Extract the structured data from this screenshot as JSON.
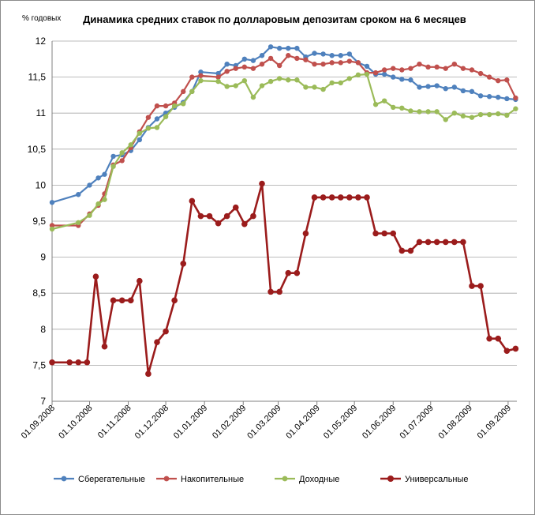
{
  "chart_data": {
    "type": "line",
    "title": "Динамика средних ставок по долларовым депозитам сроком на 6 месяцев",
    "ylabel": "% годовых",
    "xlabel": "",
    "ylim": [
      7,
      12
    ],
    "yticks": [
      "7",
      "7,5",
      "8",
      "8,5",
      "9",
      "9,5",
      "10",
      "10,5",
      "11",
      "11,5",
      "12"
    ],
    "xticks": [
      "01.09.2008",
      "01.10.2008",
      "01.11.2008",
      "01.12.2008",
      "01.01.2009",
      "01.02.2009",
      "01.03.2009",
      "01.04.2009",
      "01.05.2009",
      "01.06.2009",
      "01.07.2009",
      "01.08.2009",
      "01.09.2009"
    ],
    "grid": "horizontal",
    "legend_position": "bottom",
    "colors": {
      "Сберегательные": "#4f81bd",
      "Накопительные": "#c0504d",
      "Доходные": "#9bbb59",
      "Универсальные": "#9b1c1c"
    },
    "series": [
      {
        "name": "Сберегательные",
        "x": [
          "2008-09-01",
          "2008-09-22",
          "2008-10-01",
          "2008-10-08",
          "2008-10-13",
          "2008-10-20",
          "2008-10-27",
          "2008-11-03",
          "2008-11-10",
          "2008-11-17",
          "2008-11-24",
          "2008-12-01",
          "2008-12-08",
          "2008-12-15",
          "2008-12-22",
          "2008-12-29",
          "2009-01-12",
          "2009-01-19",
          "2009-01-26",
          "2009-02-02",
          "2009-02-09",
          "2009-02-16",
          "2009-02-23",
          "2009-03-02",
          "2009-03-09",
          "2009-03-16",
          "2009-03-23",
          "2009-03-30",
          "2009-04-06",
          "2009-04-13",
          "2009-04-20",
          "2009-04-27",
          "2009-05-04",
          "2009-05-11",
          "2009-05-18",
          "2009-05-25",
          "2009-06-01",
          "2009-06-08",
          "2009-06-15",
          "2009-06-22",
          "2009-06-29",
          "2009-07-06",
          "2009-07-13",
          "2009-07-20",
          "2009-07-27",
          "2009-08-03",
          "2009-08-10",
          "2009-08-17",
          "2009-08-24",
          "2009-08-31",
          "2009-09-07"
        ],
        "values": [
          9.76,
          9.87,
          10.0,
          10.1,
          10.15,
          10.4,
          10.42,
          10.48,
          10.63,
          10.8,
          10.92,
          11.0,
          11.08,
          11.15,
          11.3,
          11.57,
          11.55,
          11.68,
          11.66,
          11.75,
          11.73,
          11.8,
          11.92,
          11.9,
          11.9,
          11.9,
          11.78,
          11.83,
          11.82,
          11.8,
          11.8,
          11.82,
          11.7,
          11.65,
          11.54,
          11.54,
          11.5,
          11.47,
          11.46,
          11.36,
          11.37,
          11.38,
          11.34,
          11.36,
          11.31,
          11.3,
          11.24,
          11.23,
          11.22,
          11.2,
          11.19
        ]
      },
      {
        "name": "Накопительные",
        "x": [
          "2008-09-01",
          "2008-09-22",
          "2008-10-01",
          "2008-10-08",
          "2008-10-13",
          "2008-10-20",
          "2008-10-27",
          "2008-11-03",
          "2008-11-10",
          "2008-11-17",
          "2008-11-24",
          "2008-12-01",
          "2008-12-08",
          "2008-12-15",
          "2008-12-22",
          "2008-12-29",
          "2009-01-12",
          "2009-01-19",
          "2009-01-26",
          "2009-02-02",
          "2009-02-09",
          "2009-02-16",
          "2009-02-23",
          "2009-03-02",
          "2009-03-09",
          "2009-03-16",
          "2009-03-23",
          "2009-03-30",
          "2009-04-06",
          "2009-04-13",
          "2009-04-20",
          "2009-04-27",
          "2009-05-04",
          "2009-05-11",
          "2009-05-18",
          "2009-05-25",
          "2009-06-01",
          "2009-06-08",
          "2009-06-15",
          "2009-06-22",
          "2009-06-29",
          "2009-07-06",
          "2009-07-13",
          "2009-07-20",
          "2009-07-27",
          "2009-08-03",
          "2009-08-10",
          "2009-08-17",
          "2009-08-24",
          "2009-08-31",
          "2009-09-07"
        ],
        "values": [
          9.44,
          9.44,
          9.6,
          9.72,
          9.88,
          10.28,
          10.34,
          10.52,
          10.74,
          10.94,
          11.1,
          11.1,
          11.14,
          11.3,
          11.5,
          11.52,
          11.5,
          11.58,
          11.62,
          11.64,
          11.62,
          11.68,
          11.76,
          11.66,
          11.8,
          11.76,
          11.74,
          11.68,
          11.68,
          11.7,
          11.7,
          11.72,
          11.7,
          11.56,
          11.56,
          11.6,
          11.62,
          11.6,
          11.62,
          11.68,
          11.64,
          11.64,
          11.62,
          11.68,
          11.62,
          11.6,
          11.55,
          11.5,
          11.45,
          11.46,
          11.21
        ]
      },
      {
        "name": "Доходные",
        "x": [
          "2008-09-01",
          "2008-09-22",
          "2008-10-01",
          "2008-10-08",
          "2008-10-13",
          "2008-10-20",
          "2008-10-27",
          "2008-11-03",
          "2008-11-10",
          "2008-11-17",
          "2008-11-24",
          "2008-12-01",
          "2008-12-08",
          "2008-12-15",
          "2008-12-22",
          "2008-12-29",
          "2009-01-12",
          "2009-01-19",
          "2009-01-26",
          "2009-02-02",
          "2009-02-09",
          "2009-02-16",
          "2009-02-23",
          "2009-03-02",
          "2009-03-09",
          "2009-03-16",
          "2009-03-23",
          "2009-03-30",
          "2009-04-06",
          "2009-04-13",
          "2009-04-20",
          "2009-04-27",
          "2009-05-04",
          "2009-05-11",
          "2009-05-18",
          "2009-05-25",
          "2009-06-01",
          "2009-06-08",
          "2009-06-15",
          "2009-06-22",
          "2009-06-29",
          "2009-07-06",
          "2009-07-13",
          "2009-07-20",
          "2009-07-27",
          "2009-08-03",
          "2009-08-10",
          "2009-08-17",
          "2009-08-24",
          "2009-08-31",
          "2009-09-07"
        ],
        "values": [
          9.39,
          9.48,
          9.58,
          9.74,
          9.8,
          10.26,
          10.45,
          10.56,
          10.72,
          10.79,
          10.8,
          10.95,
          11.1,
          11.13,
          11.3,
          11.45,
          11.44,
          11.37,
          11.38,
          11.45,
          11.22,
          11.38,
          11.44,
          11.48,
          11.46,
          11.46,
          11.36,
          11.36,
          11.33,
          11.42,
          11.42,
          11.48,
          11.53,
          11.54,
          11.12,
          11.17,
          11.08,
          11.07,
          11.03,
          11.02,
          11.02,
          11.02,
          10.91,
          11.0,
          10.96,
          10.94,
          10.98,
          10.98,
          10.99,
          10.97,
          11.06
        ]
      },
      {
        "name": "Универсальные",
        "x": [
          "2008-09-01",
          "2008-09-15",
          "2008-09-22",
          "2008-09-29",
          "2008-10-06",
          "2008-10-13",
          "2008-10-20",
          "2008-10-27",
          "2008-11-03",
          "2008-11-10",
          "2008-11-17",
          "2008-11-24",
          "2008-12-01",
          "2008-12-08",
          "2008-12-15",
          "2008-12-22",
          "2008-12-29",
          "2009-01-05",
          "2009-01-12",
          "2009-01-19",
          "2009-01-26",
          "2009-02-02",
          "2009-02-09",
          "2009-02-16",
          "2009-02-23",
          "2009-03-02",
          "2009-03-09",
          "2009-03-16",
          "2009-03-23",
          "2009-03-30",
          "2009-04-06",
          "2009-04-13",
          "2009-04-20",
          "2009-04-27",
          "2009-05-04",
          "2009-05-11",
          "2009-05-18",
          "2009-05-25",
          "2009-06-01",
          "2009-06-08",
          "2009-06-15",
          "2009-06-22",
          "2009-06-29",
          "2009-07-06",
          "2009-07-13",
          "2009-07-20",
          "2009-07-27",
          "2009-08-03",
          "2009-08-10",
          "2009-08-17",
          "2009-08-24",
          "2009-08-31",
          "2009-09-07"
        ],
        "values": [
          7.54,
          7.54,
          7.54,
          7.54,
          8.73,
          7.76,
          8.4,
          8.4,
          8.4,
          8.67,
          7.38,
          7.82,
          7.97,
          8.4,
          8.91,
          9.78,
          9.57,
          9.57,
          9.47,
          9.57,
          9.69,
          9.46,
          9.57,
          10.02,
          8.52,
          8.52,
          8.78,
          8.78,
          9.33,
          9.83,
          9.83,
          9.83,
          9.83,
          9.83,
          9.83,
          9.83,
          9.33,
          9.33,
          9.33,
          9.09,
          9.09,
          9.21,
          9.21,
          9.21,
          9.21,
          9.21,
          9.21,
          8.6,
          8.6,
          7.87,
          7.87,
          7.7,
          7.73
        ]
      }
    ]
  }
}
